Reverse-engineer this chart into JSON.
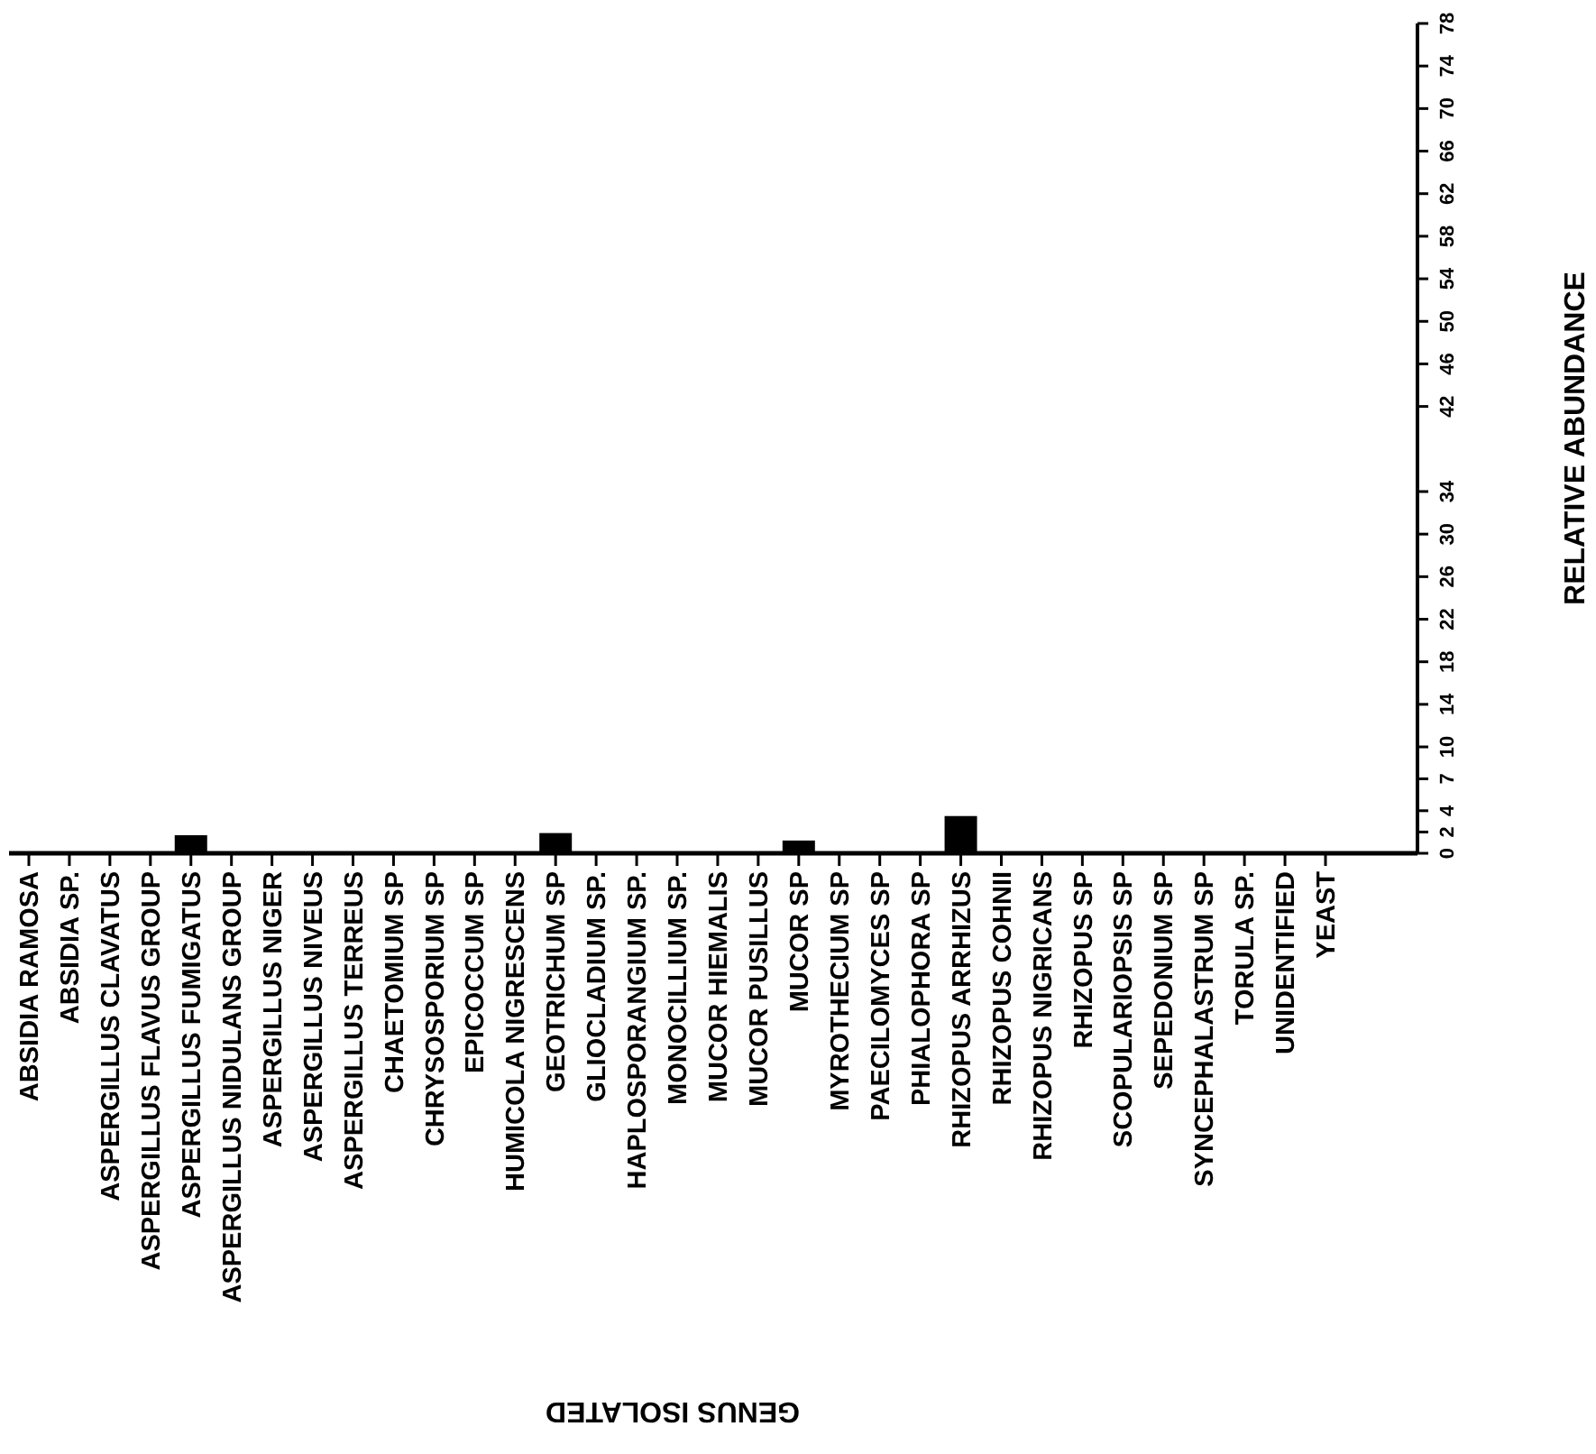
{
  "chart_data": {
    "type": "bar",
    "xlabel": "GENUS ISOLATED",
    "ylabel": "RELATIVE ABUNDANCE",
    "categories": [
      "ABSIDIA RAMOSA",
      "ABSIDIA SP.",
      "ASPERGILLUS CLAVATUS",
      "ASPERGILLUS FLAVUS GROUP",
      "ASPERGILLUS FUMIGATUS",
      "ASPERGILLUS NIDULANS GROUP",
      "ASPERGILLUS NIGER",
      "ASPERGILLUS NIVEUS",
      "ASPERGILLUS TERREUS",
      "CHAETOMIUM SP",
      "CHRYSOSPORIUM SP",
      "EPICOCCUM SP",
      "HUMICOLA NIGRESCENS",
      "GEOTRICHUM SP",
      "GLIOCLADIUM SP.",
      "HAPLOSPORANGIUM SP.",
      "MONOCILLIUM SP.",
      "MUCOR HIEMALIS",
      "MUCOR PUSILLUS",
      "MUCOR SP",
      "MYROTHECIUM SP",
      "PAECILOMYCES SP",
      "PHIALOPHORA SP",
      "RHIZOPUS ARRHIZUS",
      "RHIZOPUS COHNII",
      "RHIZOPUS NIGRICANS",
      "RHIZOPUS SP",
      "SCOPULARIOPSIS SP",
      "SEPEDONIUM SP",
      "SYNCEPHALASTRUM SP",
      "TORULA SP.",
      "UNIDENTIFIED",
      "YEAST"
    ],
    "values": [
      0,
      0,
      0,
      0,
      1.7,
      0,
      0,
      0,
      0,
      0,
      0,
      0,
      0,
      1.9,
      0,
      0,
      0,
      0,
      0,
      1.2,
      0,
      0,
      0,
      3.5,
      0,
      0,
      0,
      0,
      0,
      0,
      0,
      0,
      0
    ],
    "color": "#000000",
    "ylim": [
      0,
      78
    ],
    "yticks": [
      0,
      2,
      4,
      7,
      10,
      14,
      18,
      22,
      26,
      30,
      34,
      42,
      46,
      50,
      54,
      58,
      62,
      66,
      70,
      74,
      78
    ]
  }
}
